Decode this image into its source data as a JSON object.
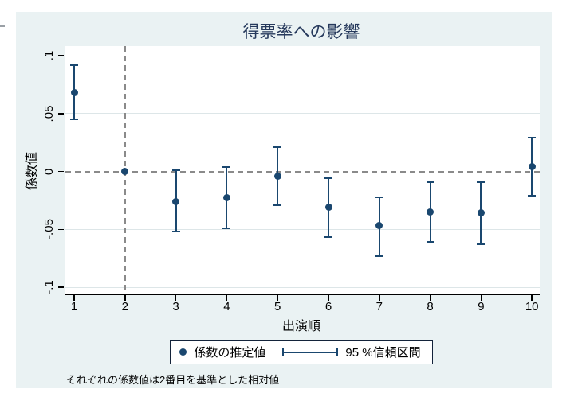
{
  "chart": {
    "title": "得票率への影響",
    "x_axis_title": "出演順",
    "y_axis_title": "係数値",
    "note": "それぞれの係数値は2番目を基準とした相対値",
    "legend": {
      "estimate_label": "係数の推定値",
      "ci_label": "95 %信頼区間"
    }
  },
  "chart_data": {
    "type": "scatter",
    "title": "得票率への影響",
    "xlabel": "出演順",
    "ylabel": "係数値",
    "x": [
      1,
      2,
      3,
      4,
      5,
      6,
      7,
      8,
      9,
      10
    ],
    "series": [
      {
        "name": "係数の推定値",
        "values": [
          0.068,
          0.0,
          -0.026,
          -0.023,
          -0.004,
          -0.031,
          -0.047,
          -0.035,
          -0.036,
          0.004
        ]
      }
    ],
    "ci_low": [
      0.045,
      null,
      -0.052,
      -0.049,
      -0.029,
      -0.057,
      -0.073,
      -0.061,
      -0.063,
      -0.021
    ],
    "ci_high": [
      0.092,
      null,
      0.001,
      0.004,
      0.021,
      -0.006,
      -0.022,
      -0.009,
      -0.009,
      0.029
    ],
    "ci_level": "95 %",
    "reference_x": 2,
    "reference_y": 0,
    "xticks": [
      "1",
      "2",
      "3",
      "4",
      "5",
      "6",
      "7",
      "8",
      "9",
      "10"
    ],
    "yticks": [
      {
        "value": 0.1,
        "label": ".1"
      },
      {
        "value": 0.05,
        "label": ".05"
      },
      {
        "value": 0,
        "label": "0"
      },
      {
        "value": -0.05,
        "label": "-.05"
      },
      {
        "value": -0.1,
        "label": "-.1"
      }
    ],
    "xlim": [
      0.82,
      10.15
    ],
    "ylim": [
      -0.107,
      0.108
    ],
    "grid": "horizontal-only",
    "legend_position": "bottom-center",
    "note": "それぞれの係数値は2番目を基準とした相対値"
  },
  "colors": {
    "panel_background": "#eaf2f3",
    "plot_background": "#ffffff",
    "gridline": "#dde6e8",
    "axis": "#000000",
    "series": "#1a476f",
    "reference_line": "#8a8a8a",
    "title_text": "#26395c",
    "text": "#000000",
    "legend_border": "#13233a"
  }
}
